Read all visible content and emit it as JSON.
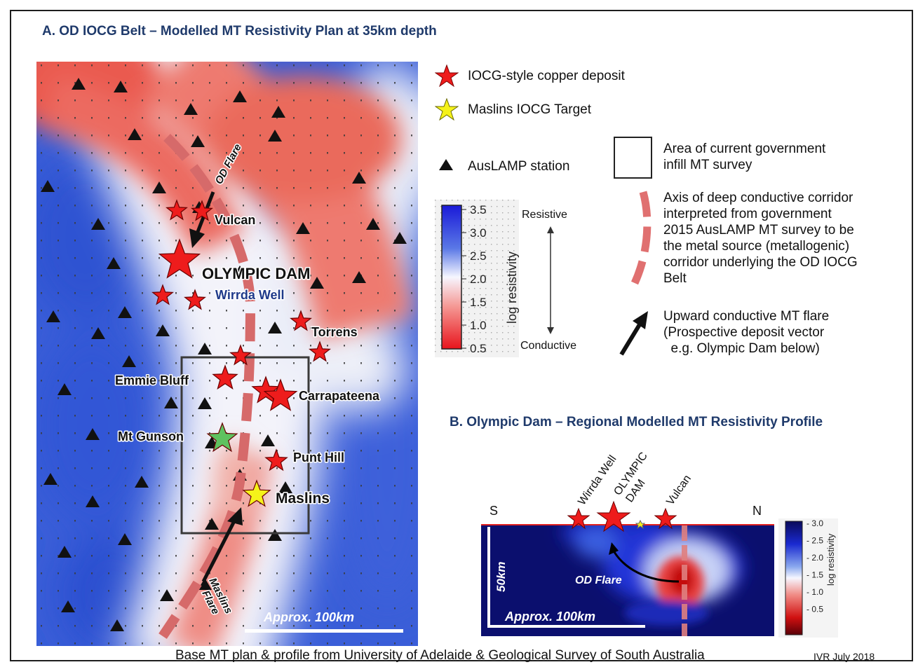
{
  "panel_a": {
    "title": "A. OD IOCG Belt – Modelled MT Resistivity Plan at 35km depth",
    "deposits": {
      "vulcan": "Vulcan",
      "olympic_dam": "OLYMPIC DAM",
      "wirrda_well": "Wirrda Well",
      "torrens": "Torrens",
      "emmie_bluff": "Emmie Bluff",
      "carrapateena": "Carrapateena",
      "mt_gunson": "Mt Gunson",
      "punt_hill": "Punt Hill",
      "maslins": "Maslins"
    },
    "od_flare_label": "OD Flare",
    "maslins_flare_label": [
      "Maslins",
      "Flare"
    ],
    "scale_label": "Approx. 100km"
  },
  "legend": {
    "copper_deposit": "IOCG-style copper deposit",
    "maslins_target": "Maslins IOCG Target",
    "station": "AusLAMP station",
    "survey_area": [
      "Area of current government",
      "infill MT survey"
    ],
    "corridor_axis": [
      "Axis of deep conductive corridor",
      "interpreted from government",
      "2015 AusLAMP MT survey to be",
      "the metal source (metallogenic)",
      "corridor underlying the OD IOCG",
      "Belt"
    ],
    "flare": [
      "Upward conductive MT flare",
      "(Prospective deposit vector",
      "  e.g. Olympic Dam below)"
    ],
    "colorbar": {
      "ticks": [
        "3.5",
        "3.0",
        "2.5",
        "2.0",
        "1.5",
        "1.0",
        "0.5"
      ],
      "axis_label": "log resistivity",
      "resistive": "Resistive",
      "conductive": "Conductive",
      "colors": {
        "high": "#1a1ad8",
        "mid": "#ffffff",
        "low": "#e8141c"
      }
    }
  },
  "panel_b": {
    "title": "B. Olympic Dam – Regional Modelled MT Resistivity Profile",
    "south": "S",
    "north": "N",
    "wirrda_well": "Wirrda Well",
    "olympic_dam": [
      "OLYMPIC",
      "DAM"
    ],
    "vulcan": "Vulcan",
    "depth_label": "50km",
    "scale_label": "Approx. 100km",
    "od_flare_label": "OD Flare",
    "colorbar": {
      "ticks": [
        "3.0",
        "2.5",
        "2.0",
        "1.5",
        "1.0",
        "0.5"
      ],
      "axis_label": "log resistivity"
    }
  },
  "footer": "Base MT plan & profile from University of Adelaide & Geological Survey of South Australia",
  "credit": "IVR July 2018"
}
